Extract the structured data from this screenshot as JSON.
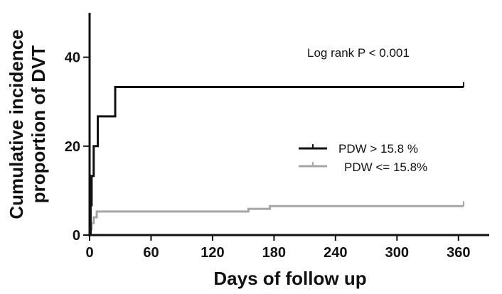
{
  "chart_data": {
    "type": "line",
    "step": true,
    "title": "",
    "xlabel": "Days of follow up",
    "ylabel_lines": [
      "Cumulative incidence",
      "proportion of DVT"
    ],
    "xlim": [
      0,
      390
    ],
    "ylim": [
      0,
      50
    ],
    "xticks": [
      0,
      60,
      120,
      180,
      240,
      300,
      360
    ],
    "xtick_labels": [
      "0",
      "60",
      "120",
      "180",
      "240",
      "300",
      "360"
    ],
    "yticks": [
      0,
      20,
      40
    ],
    "ytick_labels": [
      "0",
      "20",
      "40"
    ],
    "annotation": "Log rank P < 0.001",
    "legend_position": "right",
    "series": [
      {
        "name": "PDW > 15.8 %",
        "color": "#111111",
        "points": [
          [
            0,
            0
          ],
          [
            1,
            6.7
          ],
          [
            2,
            13.3
          ],
          [
            4,
            20.0
          ],
          [
            8,
            26.7
          ],
          [
            25,
            33.3
          ],
          [
            365,
            33.3
          ]
        ],
        "censor_at": 365
      },
      {
        "name": "PDW <= 15.8%",
        "color": "#a6a6a6",
        "points": [
          [
            0,
            0
          ],
          [
            1,
            1.3
          ],
          [
            2,
            2.7
          ],
          [
            4,
            4.0
          ],
          [
            7,
            5.3
          ],
          [
            155,
            5.9
          ],
          [
            176,
            6.5
          ],
          [
            365,
            6.5
          ]
        ],
        "censor_at": 365
      }
    ]
  }
}
